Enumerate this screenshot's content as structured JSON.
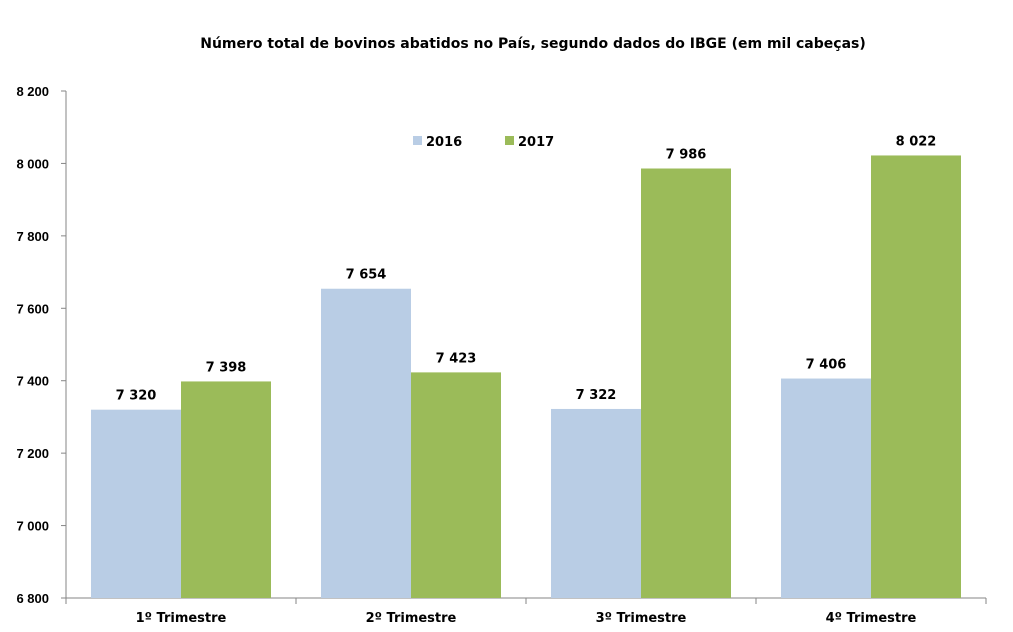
{
  "chart_data": {
    "type": "bar",
    "title": "Número total de bovinos abatidos no País, segundo dados do IBGE (em mil cabeças)",
    "categories": [
      "1º Trimestre",
      "2º Trimestre",
      "3º Trimestre",
      "4º Trimestre"
    ],
    "series": [
      {
        "name": "2016",
        "values": [
          7320,
          7654,
          7322,
          7406
        ],
        "labels": [
          "7 320",
          "7 654",
          "7 322",
          "7 406"
        ],
        "color": "#b9cde5"
      },
      {
        "name": "2017",
        "values": [
          7398,
          7423,
          7986,
          8022
        ],
        "labels": [
          "7 398",
          "7 423",
          "7 986",
          "8 022"
        ],
        "color": "#9bbb59"
      }
    ],
    "ylim": [
      6800,
      8200
    ],
    "yticks": [
      6800,
      7000,
      7200,
      7400,
      7600,
      7800,
      8000,
      8200
    ],
    "ytick_labels": [
      "6 800",
      "7 000",
      "7 200",
      "7 400",
      "7 600",
      "7 800",
      "8 000",
      "8 200"
    ],
    "xlabel": "",
    "ylabel": "",
    "grid": false,
    "legend_position": "top-center"
  }
}
